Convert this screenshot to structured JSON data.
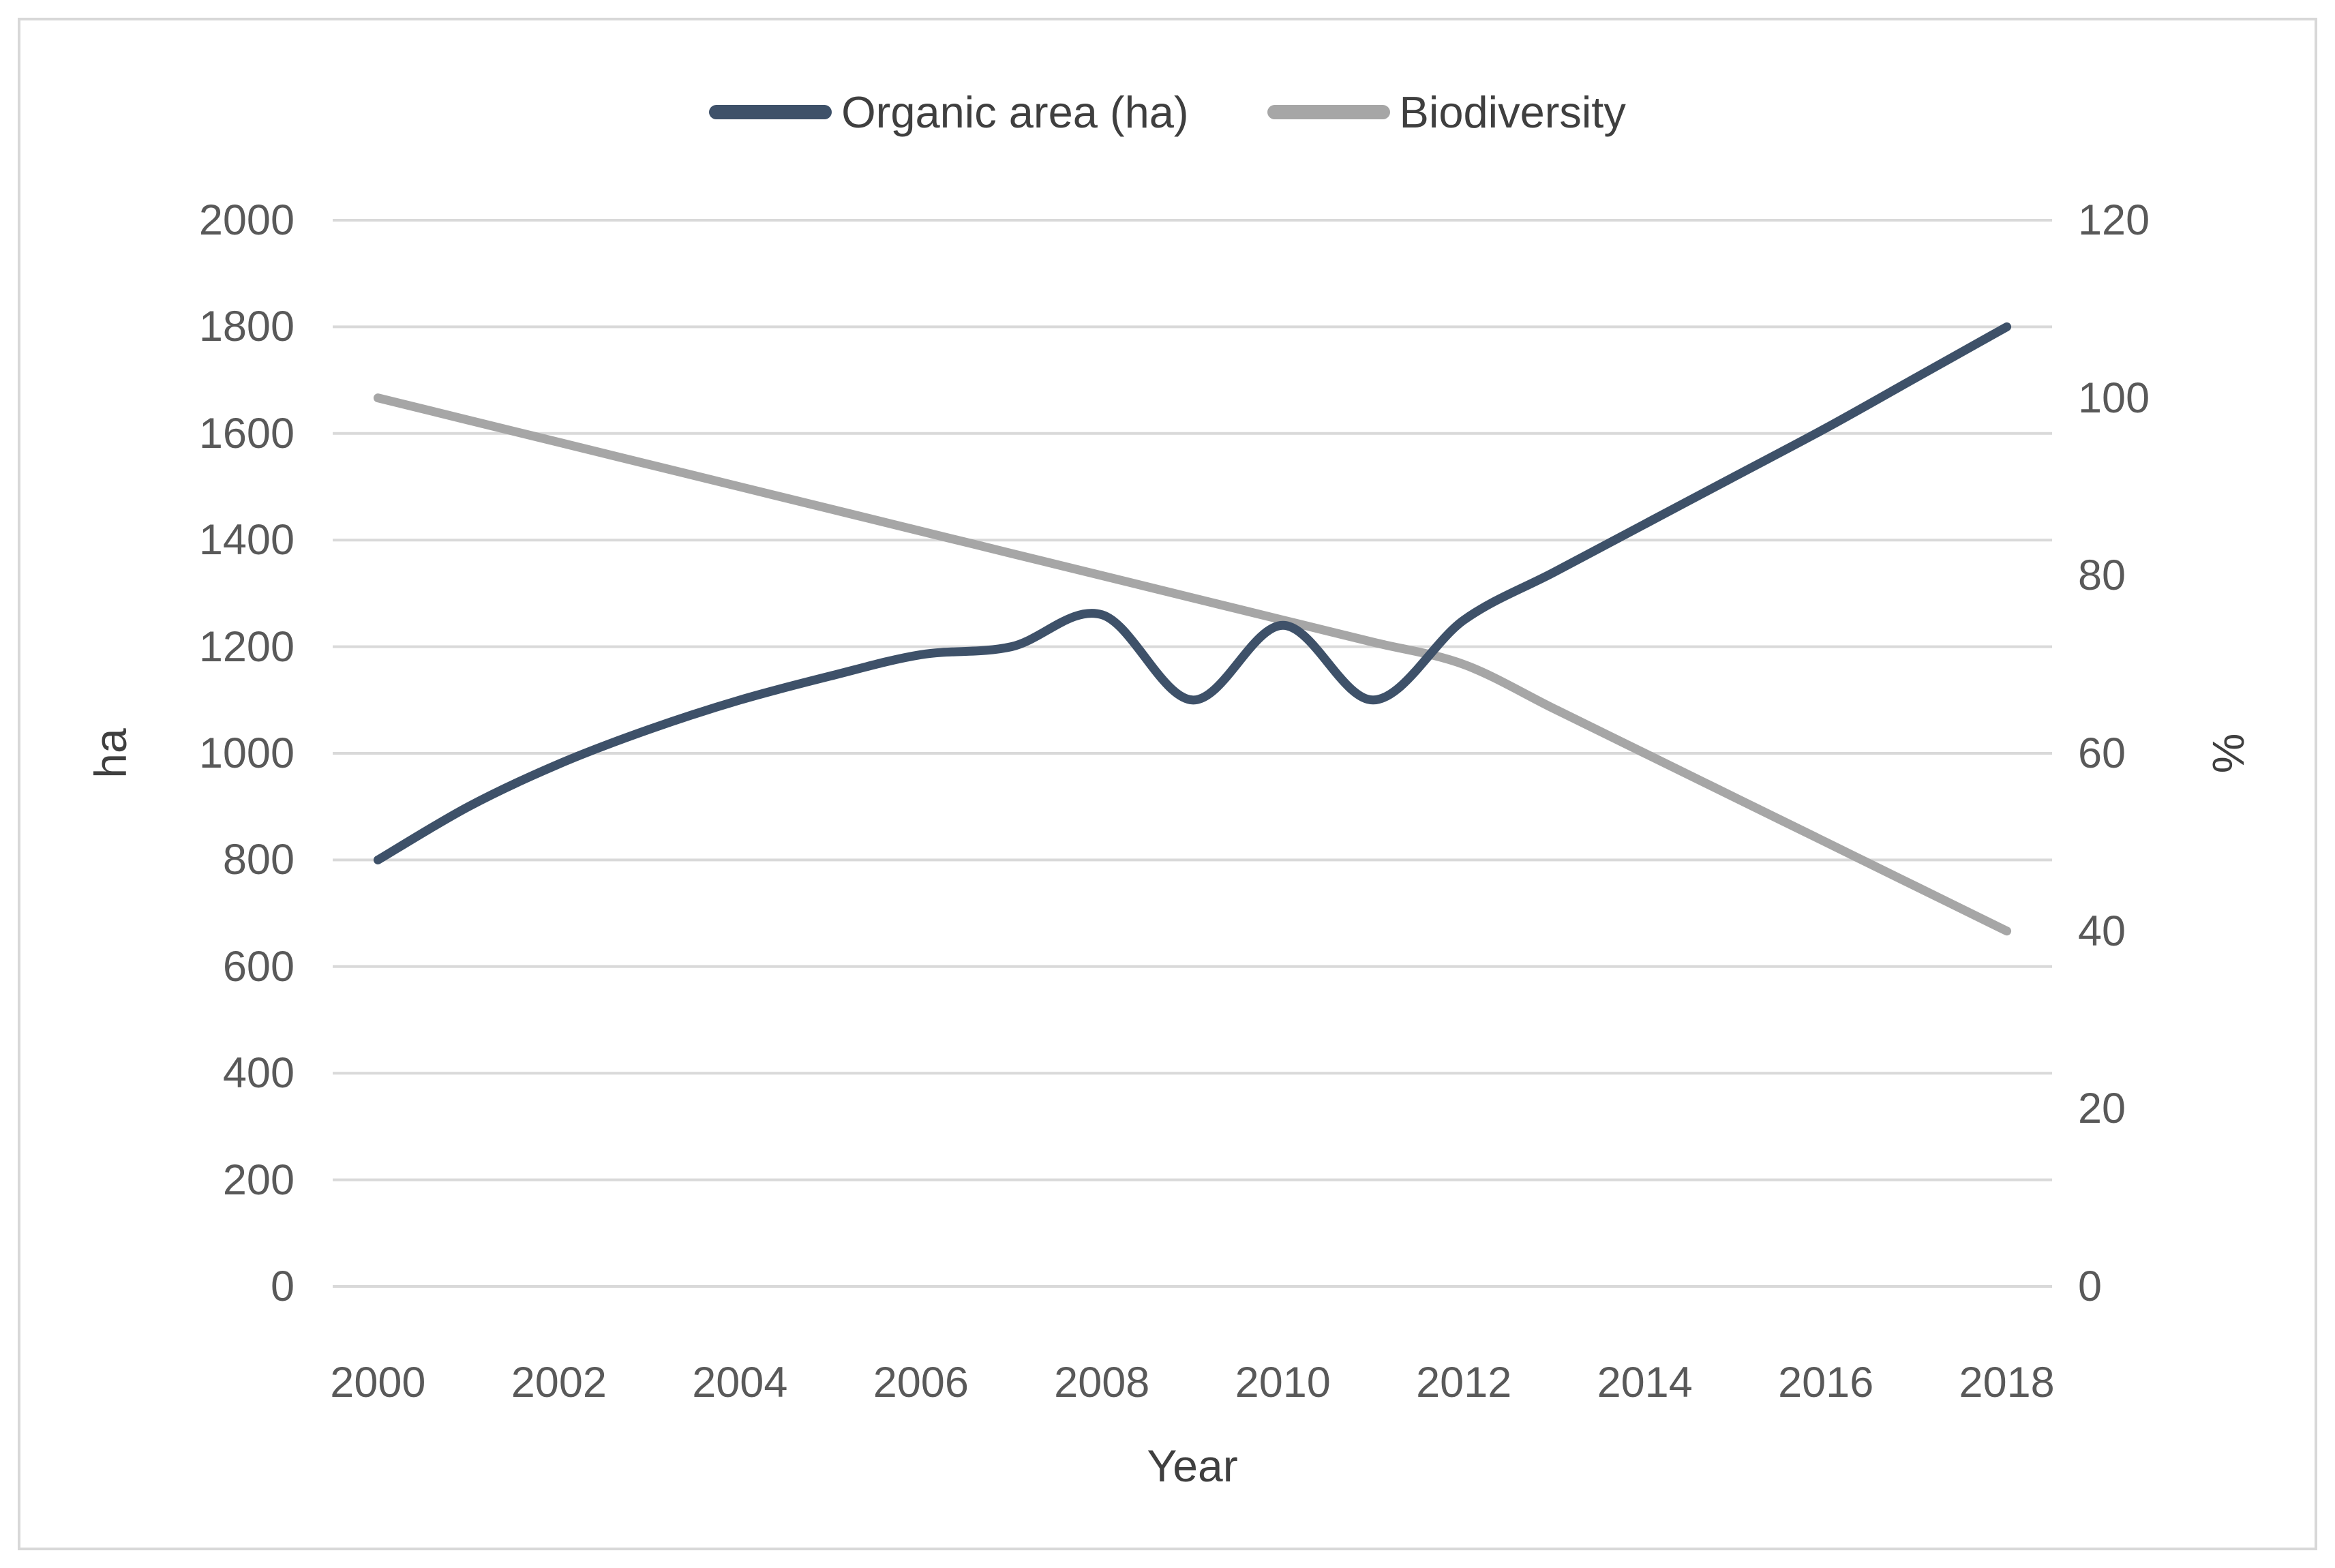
{
  "chart_data": {
    "type": "line",
    "title": "",
    "x": [
      2000,
      2001,
      2002,
      2003,
      2004,
      2005,
      2006,
      2007,
      2008,
      2009,
      2010,
      2011,
      2012,
      2013,
      2014,
      2015,
      2016,
      2017,
      2018
    ],
    "series": [
      {
        "name": "Organic area (ha)",
        "axis": "left",
        "color": "#3e5169",
        "values": [
          800,
          900,
          980,
          1045,
          1100,
          1145,
          1185,
          1200,
          1260,
          1100,
          1240,
          1100,
          1250,
          1340,
          1430,
          1520,
          1610,
          1705,
          1800
        ]
      },
      {
        "name": "Biodiversity",
        "axis": "right",
        "color": "#a6a6a6",
        "values": [
          100,
          97.5,
          95,
          92.5,
          90,
          87.5,
          85,
          82.5,
          80,
          77.5,
          75,
          72.5,
          70,
          65,
          60,
          55,
          50,
          45,
          40
        ]
      }
    ],
    "left_axis": {
      "label": "ha",
      "min": 0,
      "max": 2000,
      "ticks": [
        0,
        200,
        400,
        600,
        800,
        1000,
        1200,
        1400,
        1600,
        1800,
        2000
      ]
    },
    "right_axis": {
      "label": "%",
      "min": 0,
      "max": 120,
      "ticks": [
        0,
        20,
        40,
        60,
        80,
        100,
        120
      ]
    },
    "x_axis": {
      "label": "Year",
      "tick_labels": [
        2000,
        2002,
        2004,
        2006,
        2008,
        2010,
        2012,
        2014,
        2016,
        2018
      ]
    },
    "grid": true,
    "gridline_color": "#d9d9d9",
    "legend_position": "top"
  }
}
